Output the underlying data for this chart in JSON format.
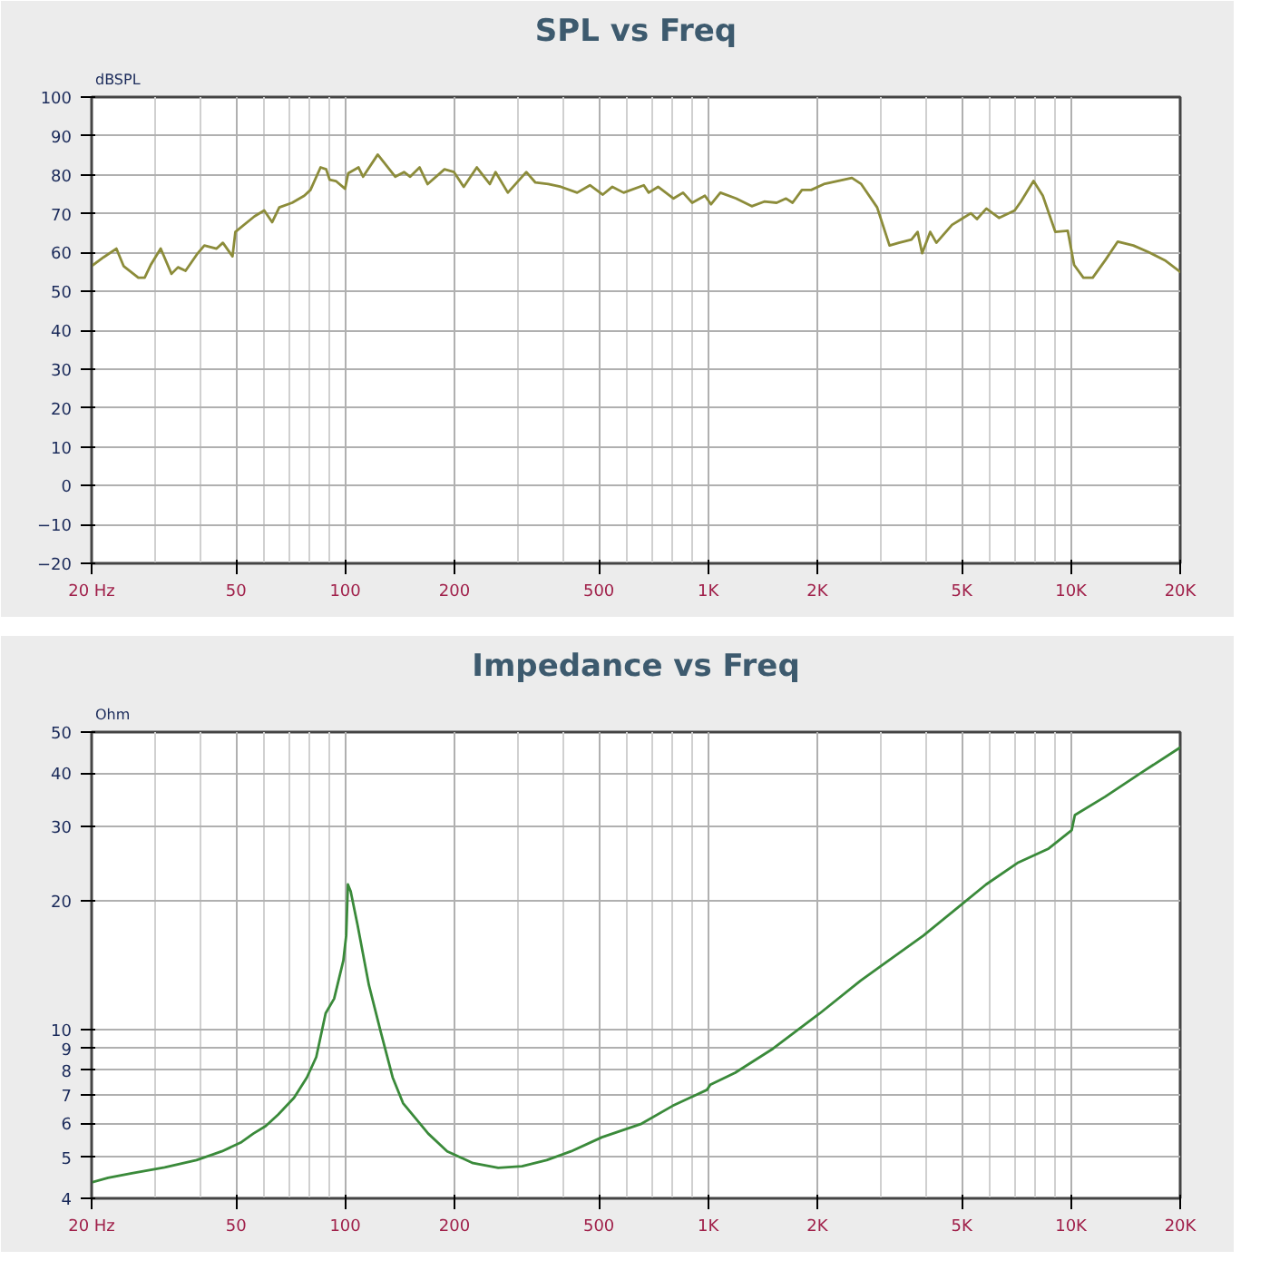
{
  "chart_data": [
    {
      "type": "line",
      "title": "SPL vs Freq",
      "ylabel": "dBSPL",
      "log": "x",
      "grid": true,
      "xlim": [
        20,
        20000
      ],
      "ylim": [
        -20,
        100
      ],
      "xticks": [
        {
          "value": 20,
          "label": "20 Hz"
        },
        50,
        100,
        200,
        500,
        {
          "value": 1000,
          "label": "1K"
        },
        {
          "value": 2000,
          "label": "2K"
        },
        {
          "value": 5000,
          "label": "5K"
        },
        {
          "value": 10000,
          "label": "10K"
        },
        {
          "value": 20000,
          "label": "20K"
        }
      ],
      "yticks": [
        -20,
        -10,
        0,
        10,
        20,
        30,
        40,
        50,
        60,
        70,
        80,
        90,
        100
      ],
      "x": [
        20,
        21.6,
        23.4,
        24.5,
        26.9,
        28,
        29.1,
        31,
        33.2,
        34.6,
        36.3,
        39,
        40.9,
        44.2,
        46,
        48.9,
        49.8,
        56.2,
        59.8,
        62.9,
        65.8,
        71.4,
        77.1,
        80.2,
        85.5,
        88.6,
        90.6,
        94.2,
        99.9,
        101.9,
        108.8,
        112,
        122.9,
        137.4,
        145.2,
        151,
        160.3,
        168.6,
        187.7,
        199.4,
        212.1,
        230.5,
        250.3,
        259.6,
        280.6,
        315.5,
        334.3,
        362.6,
        393.1,
        435.7,
        472.4,
        512.7,
        544.7,
        585,
        665,
        686,
        728,
        803,
        853,
        904,
        980,
        1019,
        1081,
        1194,
        1319,
        1428,
        1545,
        1640,
        1709,
        1814,
        1924,
        2084,
        2491,
        2643,
        2923,
        3162,
        3357,
        3634,
        3779,
        3889,
        4093,
        4257,
        4701,
        4990,
        5295,
        5508,
        5846,
        6333,
        6997,
        7278,
        7887,
        8364,
        9056,
        9798,
        10200,
        10820,
        11480,
        12430,
        13460,
        14860,
        16430,
        18150,
        20000
      ],
      "series": [
        {
          "color": "#8c8c3a",
          "values": [
            56.5,
            58.8,
            61,
            56.5,
            53.5,
            53.5,
            56.8,
            61,
            54.5,
            56.2,
            55.3,
            59.5,
            61.8,
            61,
            62.5,
            59,
            65.3,
            69.3,
            70.8,
            67.8,
            71.6,
            72.8,
            74.6,
            76.1,
            81.9,
            81.4,
            78.7,
            78.4,
            76.4,
            80.4,
            81.9,
            79.5,
            85.2,
            79.5,
            80.7,
            79.5,
            81.9,
            77.6,
            81.4,
            80.7,
            76.9,
            81.9,
            77.6,
            80.7,
            75.4,
            80.7,
            78,
            77.6,
            76.9,
            75.4,
            77.3,
            74.9,
            76.9,
            75.4,
            77.3,
            75.4,
            76.9,
            73.9,
            75.4,
            72.8,
            74.6,
            72.4,
            75.4,
            73.9,
            71.9,
            73.1,
            72.8,
            73.9,
            72.8,
            76.1,
            76.1,
            77.6,
            79.2,
            77.6,
            71.6,
            61.8,
            62.5,
            63.3,
            65.3,
            59.8,
            65.3,
            62.5,
            67.1,
            68.6,
            70.1,
            68.6,
            71.3,
            68.9,
            70.8,
            73.1,
            78.4,
            74.6,
            65.3,
            65.6,
            56.8,
            53.5,
            53.5,
            58,
            62.8,
            61.8,
            60,
            58,
            55
          ]
        }
      ]
    },
    {
      "type": "line",
      "title": "Impedance vs Freq",
      "ylabel": "Ohm",
      "log": "xy",
      "grid": true,
      "xlim": [
        20,
        20000
      ],
      "ylim": [
        4,
        50
      ],
      "xticks": [
        {
          "value": 20,
          "label": "20 Hz"
        },
        50,
        100,
        200,
        500,
        {
          "value": 1000,
          "label": "1K"
        },
        {
          "value": 2000,
          "label": "2K"
        },
        {
          "value": 5000,
          "label": "5K"
        },
        {
          "value": 10000,
          "label": "10K"
        },
        {
          "value": 20000,
          "label": "20K"
        }
      ],
      "yticks": [
        4,
        5,
        6,
        7,
        8,
        9,
        10,
        20,
        30,
        40,
        50
      ],
      "x": [
        20,
        22.2,
        25.8,
        31.8,
        38.9,
        45.7,
        51.5,
        55.8,
        60.4,
        65.4,
        72.3,
        78.4,
        83.2,
        88.3,
        93.2,
        98.8,
        100.6,
        101.7,
        103.5,
        108.1,
        116.2,
        125.1,
        135.1,
        144.3,
        169.3,
        191,
        225,
        264,
        307,
        359,
        419,
        510,
        655,
        798,
        993,
        1014,
        1188,
        1510,
        2033,
        2630,
        2965,
        3920,
        4975,
        5835,
        7120,
        8680,
        10050,
        10250,
        12410,
        15750,
        20000
      ],
      "series": [
        {
          "color": "#3a8a3a",
          "values": [
            4.36,
            4.47,
            4.58,
            4.73,
            4.92,
            5.16,
            5.41,
            5.68,
            5.92,
            6.3,
            6.9,
            7.7,
            8.6,
            10.9,
            11.8,
            14.5,
            16.6,
            21.9,
            21.1,
            17.6,
            12.7,
            9.9,
            7.7,
            6.7,
            5.68,
            5.16,
            4.84,
            4.72,
            4.76,
            4.92,
            5.16,
            5.57,
            5.99,
            6.6,
            7.2,
            7.4,
            7.9,
            9.0,
            10.9,
            13.0,
            14.0,
            16.6,
            19.6,
            21.9,
            24.6,
            26.6,
            29.4,
            31.9,
            35.2,
            40.3,
            46.0
          ]
        }
      ]
    }
  ]
}
